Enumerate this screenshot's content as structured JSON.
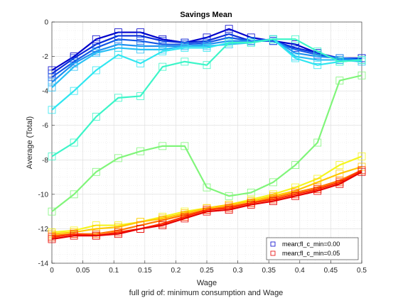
{
  "chart_data": {
    "type": "line",
    "title": "Savings Mean",
    "xlabel": "Wage",
    "ylabel": "Average (Total)",
    "caption": "full grid of: minimum consumption and Wage",
    "xlim": [
      0,
      0.5
    ],
    "ylim": [
      -14,
      0
    ],
    "xticks": [
      "0",
      "0.05",
      "0.1",
      "0.15",
      "0.2",
      "0.25",
      "0.3",
      "0.35",
      "0.4",
      "0.45",
      "0.5"
    ],
    "yticks": [
      "0",
      "-2",
      "-4",
      "-6",
      "-8",
      "-10",
      "-12",
      "-14"
    ],
    "grid": true,
    "legend_position": "bottom-right",
    "x": [
      0,
      0.0357,
      0.0714,
      0.1071,
      0.1429,
      0.1786,
      0.2143,
      0.25,
      0.2857,
      0.3214,
      0.3571,
      0.3929,
      0.4286,
      0.4643,
      0.5
    ],
    "series": [
      {
        "color": "#0000cc",
        "values": [
          -2.8,
          -2.0,
          -1.0,
          -0.6,
          -0.6,
          -1.0,
          -1.2,
          -0.9,
          -0.4,
          -0.9,
          -1.1,
          -1.3,
          -1.8,
          -2.2,
          -2.1
        ]
      },
      {
        "color": "#0a2bd9",
        "values": [
          -3.0,
          -2.1,
          -1.3,
          -0.8,
          -0.8,
          -1.1,
          -1.2,
          -1.1,
          -0.7,
          -1.1,
          -1.1,
          -1.5,
          -1.8,
          -2.1,
          -2.1
        ]
      },
      {
        "color": "#1457e6",
        "values": [
          -3.2,
          -2.3,
          -1.5,
          -1.0,
          -1.1,
          -1.3,
          -1.3,
          -1.2,
          -0.9,
          -1.1,
          -1.1,
          -1.6,
          -1.9,
          -2.1,
          -2.2
        ]
      },
      {
        "color": "#1e8ef0",
        "values": [
          -3.5,
          -2.4,
          -1.7,
          -1.3,
          -1.4,
          -1.4,
          -1.4,
          -1.3,
          -1.1,
          -1.1,
          -1.0,
          -1.8,
          -2.0,
          -2.1,
          -2.2
        ]
      },
      {
        "color": "#28c0f5",
        "values": [
          -3.8,
          -2.6,
          -1.8,
          -1.5,
          -1.6,
          -1.6,
          -1.4,
          -1.4,
          -1.3,
          -1.2,
          -1.0,
          -2.0,
          -2.2,
          -2.2,
          -2.3
        ]
      },
      {
        "color": "#30e6f0",
        "values": [
          -5.1,
          -4.0,
          -2.8,
          -1.9,
          -2.4,
          -1.7,
          -1.5,
          -1.5,
          -1.2,
          -1.2,
          -1.0,
          -2.1,
          -2.5,
          -2.3,
          -2.2
        ]
      },
      {
        "color": "#3cf5c8",
        "values": [
          -7.8,
          -7.0,
          -5.5,
          -4.4,
          -4.3,
          -2.6,
          -2.3,
          -2.5,
          -1.2,
          -1.2,
          -1.0,
          -1.0,
          -1.7,
          -2.3,
          -2.2
        ]
      },
      {
        "color": "#80f57a",
        "values": [
          -11.0,
          -10.0,
          -8.7,
          -7.9,
          -7.5,
          -7.2,
          -7.2,
          -9.6,
          -10.1,
          -9.9,
          -9.3,
          -8.3,
          -7.0,
          -3.4,
          -3.1
        ]
      },
      {
        "color": "#f5f51e",
        "values": [
          -12.2,
          -12.1,
          -11.8,
          -11.8,
          -11.6,
          -11.3,
          -11.0,
          -10.8,
          -10.6,
          -10.3,
          -10.0,
          -9.6,
          -9.1,
          -8.3,
          -7.8
        ]
      },
      {
        "color": "#ffc800",
        "values": [
          -12.3,
          -12.2,
          -12.0,
          -11.9,
          -11.6,
          -11.4,
          -11.1,
          -10.8,
          -10.6,
          -10.4,
          -10.1,
          -9.8,
          -9.3,
          -8.8,
          -8.4
        ]
      },
      {
        "color": "#ff7800",
        "values": [
          -12.4,
          -12.3,
          -12.3,
          -12.1,
          -11.8,
          -11.5,
          -11.2,
          -10.9,
          -10.7,
          -10.5,
          -10.2,
          -9.9,
          -9.6,
          -9.2,
          -8.6
        ]
      },
      {
        "color": "#ff3200",
        "values": [
          -12.5,
          -12.3,
          -12.4,
          -12.2,
          -12.0,
          -11.7,
          -11.3,
          -10.9,
          -10.8,
          -10.5,
          -10.3,
          -10.0,
          -9.7,
          -9.3,
          -8.6
        ]
      },
      {
        "color": "#e60000",
        "values": [
          -12.6,
          -12.4,
          -12.4,
          -12.3,
          -12.0,
          -11.8,
          -11.4,
          -11.0,
          -10.9,
          -10.6,
          -10.4,
          -10.1,
          -9.8,
          -9.4,
          -8.7
        ]
      }
    ],
    "legend": [
      {
        "label": "mean;fl_c_min=0.00",
        "color": "#0000cc"
      },
      {
        "label": "mean;fl_c_min=0.05",
        "color": "#e60000"
      }
    ]
  }
}
